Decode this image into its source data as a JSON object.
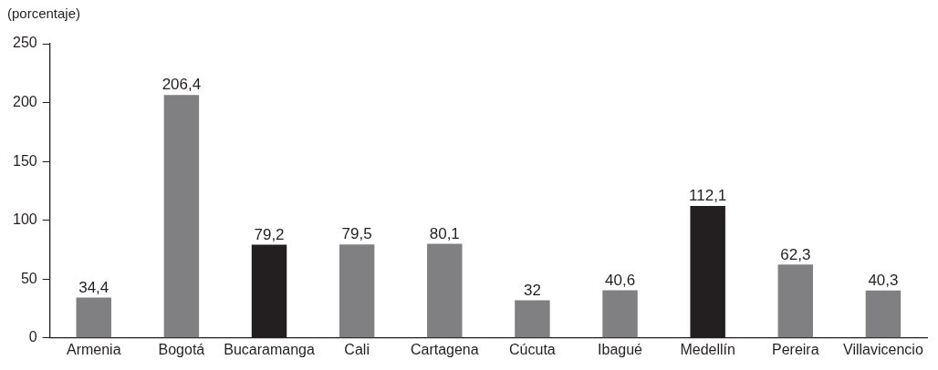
{
  "chart_data": {
    "type": "bar",
    "ylabel": "(porcentaje)",
    "categories": [
      "Armenia",
      "Bogotá",
      "Bucaramanga",
      "Cali",
      "Cartagena",
      "Cúcuta",
      "Ibagué",
      "Medellín",
      "Pereira",
      "Villavicencio"
    ],
    "values": [
      34.4,
      206.4,
      79.2,
      79.5,
      80.1,
      32,
      40.6,
      112.1,
      62.3,
      40.3
    ],
    "colors": [
      "#808083",
      "#808083",
      "#231f20",
      "#808083",
      "#808083",
      "#808083",
      "#808083",
      "#231f20",
      "#808083",
      "#808083"
    ],
    "value_labels": [
      "34,4",
      "206,4",
      "79,2",
      "79,5",
      "80,1",
      "32",
      "40,6",
      "112,1",
      "62,3",
      "40,3"
    ],
    "ylim": [
      0,
      250
    ],
    "yticks": [
      0,
      50,
      100,
      150,
      200,
      250
    ],
    "grid": false,
    "legend": false
  }
}
